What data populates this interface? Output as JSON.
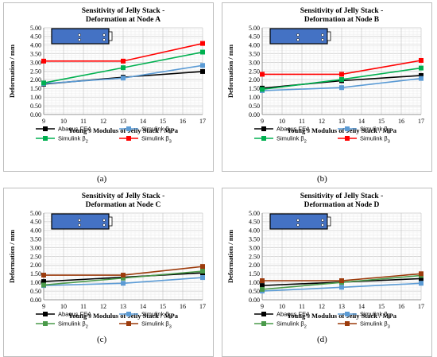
{
  "chart_data": [
    {
      "type": "line",
      "title": [
        "Sensitivity of Jelly Stack -",
        "Deformation at Node A"
      ],
      "xlabel": "Young's Modulus of Jelly Stack / MPa",
      "ylabel": "Deformation / mm",
      "xlim": [
        9,
        17
      ],
      "ylim": [
        0,
        5
      ],
      "x_ticks": [
        "9",
        "10",
        "11",
        "12",
        "13",
        "14",
        "15",
        "16",
        "17"
      ],
      "y_ticks": [
        "0.00",
        "0.50",
        "1.00",
        "1.50",
        "2.00",
        "2.50",
        "3.00",
        "3.50",
        "4.00",
        "4.50",
        "5.00"
      ],
      "grid": true,
      "legend_position": "bottom",
      "series": [
        {
          "name": "Abaqus FEA",
          "color": "#000000",
          "x": [
            9,
            13,
            17
          ],
          "values": [
            1.75,
            2.15,
            2.48
          ]
        },
        {
          "name": "Simulink β1",
          "color": "#5b9bd5",
          "x": [
            9,
            13,
            17
          ],
          "values": [
            1.78,
            2.1,
            2.83
          ]
        },
        {
          "name": "Simulink β2",
          "color": "#00b050",
          "x": [
            9,
            13,
            17
          ],
          "values": [
            1.82,
            2.7,
            3.6
          ]
        },
        {
          "name": "Simulink β3",
          "color": "#ff0000",
          "x": [
            9,
            13,
            17
          ],
          "values": [
            3.08,
            3.08,
            4.1
          ]
        }
      ]
    },
    {
      "type": "line",
      "title": [
        "Sensitivity of Jelly Stack -",
        "Deformation at Node B"
      ],
      "xlabel": "Young's Modulus of Jelly Stack / MPa",
      "ylabel": "Deformation / mm",
      "xlim": [
        9,
        17
      ],
      "ylim": [
        0,
        5
      ],
      "x_ticks": [
        "9",
        "10",
        "11",
        "12",
        "13",
        "14",
        "15",
        "16",
        "17"
      ],
      "y_ticks": [
        "0.00",
        "0.50",
        "1.00",
        "1.50",
        "2.00",
        "2.50",
        "3.00",
        "3.50",
        "4.00",
        "4.50",
        "5.00"
      ],
      "grid": true,
      "legend_position": "bottom",
      "series": [
        {
          "name": "Abaqus FEA",
          "color": "#000000",
          "x": [
            9,
            13,
            17
          ],
          "values": [
            1.52,
            1.95,
            2.25
          ]
        },
        {
          "name": "Simulink β1",
          "color": "#5b9bd5",
          "x": [
            9,
            13,
            17
          ],
          "values": [
            1.38,
            1.55,
            2.08
          ]
        },
        {
          "name": "Simulink β2",
          "color": "#00b050",
          "x": [
            9,
            13,
            17
          ],
          "values": [
            1.45,
            2.02,
            2.68
          ]
        },
        {
          "name": "Simulink β3",
          "color": "#ff0000",
          "x": [
            9,
            13,
            17
          ],
          "values": [
            2.32,
            2.32,
            3.12
          ]
        }
      ]
    },
    {
      "type": "line",
      "title": [
        "Sensitivity of Jelly Stack -",
        "Deformation at Node C"
      ],
      "xlabel": "Young's Modulus of Jelly Stack / MPa",
      "ylabel": "Deformation / mm",
      "xlim": [
        9,
        17
      ],
      "ylim": [
        0,
        5
      ],
      "x_ticks": [
        "9",
        "10",
        "11",
        "12",
        "13",
        "14",
        "15",
        "16",
        "17"
      ],
      "y_ticks": [
        "0.00",
        "0.50",
        "1.00",
        "1.50",
        "2.00",
        "2.50",
        "3.00",
        "3.50",
        "4.00",
        "4.50",
        "5.00"
      ],
      "grid": true,
      "legend_position": "bottom",
      "series": [
        {
          "name": "Abaqus FEA",
          "color": "#000000",
          "x": [
            9,
            13,
            17
          ],
          "values": [
            1.05,
            1.3,
            1.55
          ]
        },
        {
          "name": "Simulink β1",
          "color": "#5b9bd5",
          "x": [
            9,
            13,
            17
          ],
          "values": [
            0.82,
            0.95,
            1.28
          ]
        },
        {
          "name": "Simulink β2",
          "color": "#4a9a4a",
          "x": [
            9,
            13,
            17
          ],
          "values": [
            0.85,
            1.25,
            1.65
          ]
        },
        {
          "name": "Simulink β3",
          "color": "#9c3b0c",
          "x": [
            9,
            13,
            17
          ],
          "values": [
            1.42,
            1.42,
            1.92
          ]
        }
      ]
    },
    {
      "type": "line",
      "title": [
        "Sensitivity of Jelly Stack -",
        "Deformation at Node D"
      ],
      "xlabel": "Young's Modulus of Jelly Stack / MPa",
      "ylabel": "Deformation / mm",
      "xlim": [
        9,
        17
      ],
      "ylim": [
        0,
        5
      ],
      "x_ticks": [
        "9",
        "10",
        "11",
        "12",
        "13",
        "14",
        "15",
        "16",
        "17"
      ],
      "y_ticks": [
        "0.00",
        "0.50",
        "1.00",
        "1.50",
        "2.00",
        "2.50",
        "3.00",
        "3.50",
        "4.00",
        "4.50",
        "5.00"
      ],
      "grid": true,
      "legend_position": "bottom",
      "series": [
        {
          "name": "Abaqus FEA",
          "color": "#000000",
          "x": [
            9,
            13,
            17
          ],
          "values": [
            0.82,
            1.02,
            1.22
          ]
        },
        {
          "name": "Simulink β1",
          "color": "#5b9bd5",
          "x": [
            9,
            13,
            17
          ],
          "values": [
            0.5,
            0.72,
            0.95
          ]
        },
        {
          "name": "Simulink β2",
          "color": "#4a9a4a",
          "x": [
            9,
            13,
            17
          ],
          "values": [
            0.6,
            1.0,
            1.4
          ]
        },
        {
          "name": "Simulink β3",
          "color": "#9c3b0c",
          "x": [
            9,
            13,
            17
          ],
          "values": [
            1.1,
            1.1,
            1.5
          ]
        }
      ]
    }
  ],
  "captions": [
    "(a)",
    "(b)",
    "(c)",
    "(d)"
  ],
  "legend_labels": [
    {
      "base": "Abaqus FEA",
      "sub": ""
    },
    {
      "base": "Simulink β",
      "sub": "1"
    },
    {
      "base": "Simulink β",
      "sub": "2"
    },
    {
      "base": "Simulink β",
      "sub": "3"
    }
  ],
  "inset_colors": {
    "fill": "#4472c4",
    "border": "#000000"
  }
}
